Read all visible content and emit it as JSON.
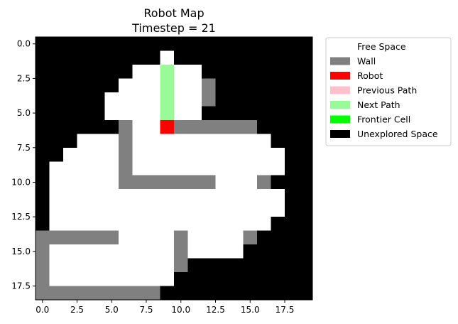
{
  "title_line1": "Robot Map",
  "title_line2": "Timestep = 21",
  "chart_data": {
    "type": "heatmap",
    "title": "Robot Map\nTimestep = 21",
    "x_ticks": [
      "0.0",
      "2.5",
      "5.0",
      "7.5",
      "10.0",
      "12.5",
      "15.0",
      "17.5"
    ],
    "y_ticks": [
      "0.0",
      "2.5",
      "5.0",
      "7.5",
      "10.0",
      "12.5",
      "15.0",
      "17.5"
    ],
    "x_tick_values": [
      0,
      2.5,
      5,
      7.5,
      10,
      12.5,
      15,
      17.5
    ],
    "y_tick_values": [
      0,
      2.5,
      5,
      7.5,
      10,
      12.5,
      15,
      17.5
    ],
    "xlim": [
      -0.5,
      19.5
    ],
    "ylim": [
      18.5,
      -0.5
    ],
    "legend_position": "outside-right",
    "legend": [
      {
        "label": "Free Space",
        "code": "F",
        "color": "#ffffff"
      },
      {
        "label": "Wall",
        "code": "W",
        "color": "#808080"
      },
      {
        "label": "Robot",
        "code": "R",
        "color": "#ff0000"
      },
      {
        "label": "Previous Path",
        "code": "P",
        "color": "#ffc0cb"
      },
      {
        "label": "Next Path",
        "code": "N",
        "color": "#98fb98"
      },
      {
        "label": "Frontier Cell",
        "code": "C",
        "color": "#00ff00"
      },
      {
        "label": "Unexplored Space",
        "code": "U",
        "color": "#000000"
      }
    ],
    "grid_rows": [
      "UUUUUUUUUUUUUUUUUUUU",
      "UUUUUUUUUFUUUUUUUUUU",
      "UUUUUUUFFNFFUUUUUUUU",
      "UUUUUUFFFNFFWUUUUUUU",
      "UUUUUFFFFNFFWUUUUUUU",
      "UUUUUFFFFNFFUUUUUUUU",
      "UUUUUUWFFRWWWWWWUUUU",
      "UUUFFFWFFFFFFFFFFUUU",
      "UUFFFFWFFFFFFFFFFFUU",
      "UFFFFFWFFFFFFFFFFFUU",
      "UFFFFFWWWWWWWFFFWUUU",
      "UFFFFFFFFFFFFFFFFFUU",
      "UFFFFFFFFFFFFFFFFFUU",
      "UFFFFFFFFFFFFFFFFUUU",
      "WWWWWWFFFFWFFFFWUUUU",
      "WFFFFFFFFFWFFFFUUUUU",
      "WFFFFFFFFFWUUUUUUUUU",
      "WFFFFFFFFFUUUUUUUUUU",
      "WWWWWWWWWUUUUUUUUUUU"
    ]
  }
}
